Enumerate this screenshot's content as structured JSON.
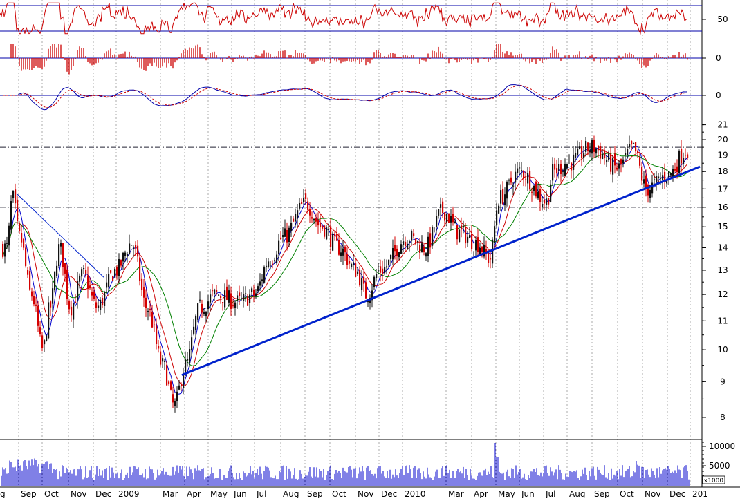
{
  "chart_data": {
    "type": "candlestick",
    "title": "",
    "x_labels": [
      "Sep",
      "Oct",
      "Nov",
      "Dec",
      "2009",
      "Mar",
      "Apr",
      "May",
      "Jun",
      "Jul",
      "Aug",
      "Sep",
      "Oct",
      "Nov",
      "Dec",
      "2010",
      "Mar",
      "Apr",
      "May",
      "Jun",
      "Jul",
      "Aug",
      "Sep",
      "Oct",
      "Nov",
      "Dec",
      "201"
    ],
    "edge_label_left": "g",
    "price_axis": {
      "scale": "log",
      "ticks": [
        8,
        9,
        10,
        11,
        12,
        13,
        14,
        15,
        16,
        17,
        18,
        19,
        20,
        21
      ],
      "ylim": [
        7.6,
        22.0
      ]
    },
    "trendline_support": {
      "from": {
        "x": "Apr 2009",
        "y": 9.2
      },
      "to": {
        "x": "Jan 2011",
        "y": 17.8
      }
    },
    "trendline_early": {
      "from": {
        "x": "Aug 2008",
        "y": 16.7
      },
      "to": {
        "x": "Nov 2008",
        "y": 12.7
      }
    },
    "horizontal_levels": [
      19.5,
      16.0
    ],
    "rsi_panel": {
      "ticks": [
        50
      ],
      "band_lines": true
    },
    "momentum_panel": {
      "ticks": [
        0
      ]
    },
    "macd_panel": {
      "ticks": [
        0
      ]
    },
    "volume_panel": {
      "ticks": [
        10000,
        5000
      ],
      "unit_label": "x1000"
    },
    "price_series_waypoints": [
      {
        "x": "Aug 2008",
        "close": 14.0
      },
      {
        "x": "early Sep 2008",
        "close": 16.5
      },
      {
        "x": "mid Sep 2008",
        "close": 14.5
      },
      {
        "x": "late Sep 2008",
        "close": 12.0
      },
      {
        "x": "Oct 2008",
        "close": 10.0
      },
      {
        "x": "late Oct 2008",
        "close": 11.5
      },
      {
        "x": "Nov 2008",
        "close": 14.0
      },
      {
        "x": "mid Nov 2008",
        "close": 11.5
      },
      {
        "x": "Dec 2008",
        "close": 12.8
      },
      {
        "x": "late Dec 2008",
        "close": 11.5
      },
      {
        "x": "Jan 2009",
        "close": 13.0
      },
      {
        "x": "Feb 2009",
        "close": 14.2
      },
      {
        "x": "late Feb 2009",
        "close": 11.5
      },
      {
        "x": "Mar 2009",
        "close": 9.5
      },
      {
        "x": "mid Mar 2009",
        "close": 8.3
      },
      {
        "x": "Apr 2009",
        "close": 9.5
      },
      {
        "x": "late Apr 2009",
        "close": 11.5
      },
      {
        "x": "May 2009",
        "close": 12.0
      },
      {
        "x": "Jun 2009",
        "close": 11.7
      },
      {
        "x": "Jul 2009",
        "close": 12.0
      },
      {
        "x": "late Jul 2009",
        "close": 13.5
      },
      {
        "x": "Aug 2009",
        "close": 14.5
      },
      {
        "x": "Sep 2009",
        "close": 16.2
      },
      {
        "x": "late Sep 2009",
        "close": 15.0
      },
      {
        "x": "Oct 2009",
        "close": 14.0
      },
      {
        "x": "late Oct 2009",
        "close": 13.0
      },
      {
        "x": "Nov 2009",
        "close": 12.0
      },
      {
        "x": "Dec 2009",
        "close": 13.0
      },
      {
        "x": "Jan 2010",
        "close": 14.5
      },
      {
        "x": "Feb 2010",
        "close": 14.0
      },
      {
        "x": "Mar 2010",
        "close": 15.8
      },
      {
        "x": "Apr 2010",
        "close": 14.7
      },
      {
        "x": "late Apr 2010",
        "close": 14.2
      },
      {
        "x": "May 2010",
        "close": 13.5
      },
      {
        "x": "late May 2010",
        "close": 16.5
      },
      {
        "x": "Jun 2010",
        "close": 18.0
      },
      {
        "x": "Jul 2010",
        "close": 16.3
      },
      {
        "x": "late Jul 2010",
        "close": 18.0
      },
      {
        "x": "Aug 2010",
        "close": 18.5
      },
      {
        "x": "Sep 2010",
        "close": 19.5
      },
      {
        "x": "Oct 2010",
        "close": 18.2
      },
      {
        "x": "late Oct 2010",
        "close": 19.4
      },
      {
        "x": "Nov 2010",
        "close": 17.0
      },
      {
        "x": "Dec 2010",
        "close": 17.8
      },
      {
        "x": "Jan 2011",
        "close": 19.4
      }
    ]
  },
  "colors": {
    "up_candle": "#111111",
    "down_candle": "#d40000",
    "ma_fast": "#0000cc",
    "ma_mid": "#cc0000",
    "ma_slow": "#008000",
    "trendline": "#0022cc",
    "volume": "#0000cc",
    "grid": "#a9a9a9"
  }
}
